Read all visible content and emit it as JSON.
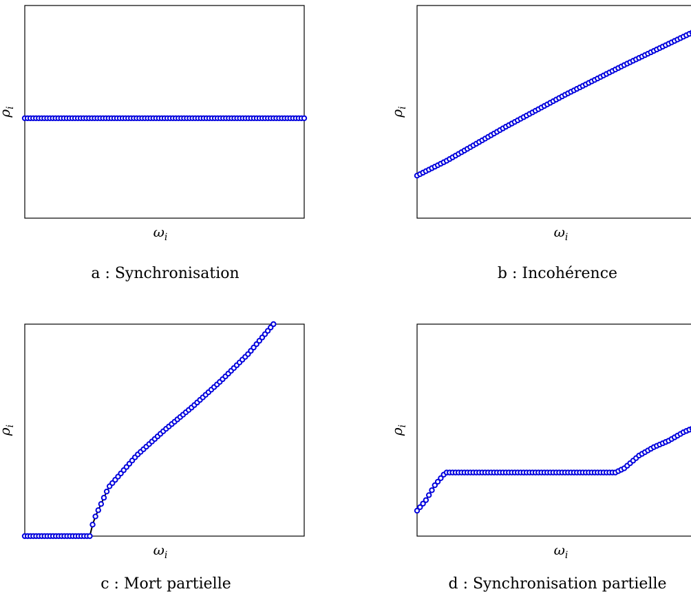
{
  "chart_data": [
    {
      "type": "scatter",
      "caption": "a : Synchronisation",
      "xlabel": "ω",
      "xlabel_sub": "i",
      "ylabel": "ρ",
      "ylabel_sub": "i",
      "xlim": [
        0,
        1
      ],
      "ylim": [
        0,
        1
      ],
      "ticks": false,
      "marker": "open-circle",
      "marker_color": "#0000dd",
      "line_color": "#000000",
      "x_start": 0.0,
      "x_end": 1.0,
      "points": 101,
      "curve": [
        [
          0.0,
          0.47
        ],
        [
          1.0,
          0.47
        ]
      ]
    },
    {
      "type": "scatter",
      "caption": "b : Incohérence",
      "xlabel": "ω",
      "xlabel_sub": "i",
      "ylabel": "ρ",
      "ylabel_sub": "i",
      "xlim": [
        0,
        1
      ],
      "ylim": [
        0,
        1
      ],
      "ticks": false,
      "marker": "open-circle",
      "marker_color": "#0000dd",
      "line_color": "#000000",
      "x_start": 0.0,
      "x_end": 1.0,
      "points": 101,
      "curve": [
        [
          0.0,
          0.2
        ],
        [
          0.1,
          0.27
        ],
        [
          0.3,
          0.43
        ],
        [
          0.5,
          0.58
        ],
        [
          0.7,
          0.72
        ],
        [
          1.0,
          0.92
        ]
      ]
    },
    {
      "type": "scatter",
      "caption": "c : Mort partielle",
      "xlabel": "ω",
      "xlabel_sub": "i",
      "ylabel": "ρ",
      "ylabel_sub": "i",
      "xlim": [
        0,
        1
      ],
      "ylim": [
        0,
        1
      ],
      "ticks": false,
      "marker": "open-circle",
      "marker_color": "#0000dd",
      "line_color": "#000000",
      "x_start": 0.0,
      "x_end": 0.89,
      "points": 89,
      "curve": [
        [
          0.0,
          0.0
        ],
        [
          0.235,
          0.0
        ],
        [
          0.245,
          0.07
        ],
        [
          0.3,
          0.23
        ],
        [
          0.4,
          0.38
        ],
        [
          0.5,
          0.5
        ],
        [
          0.6,
          0.61
        ],
        [
          0.7,
          0.73
        ],
        [
          0.8,
          0.86
        ],
        [
          0.89,
          1.0
        ]
      ]
    },
    {
      "type": "scatter",
      "caption": "d : Synchronisation partielle",
      "xlabel": "ω",
      "xlabel_sub": "i",
      "ylabel": "ρ",
      "ylabel_sub": "i",
      "xlim": [
        0,
        1
      ],
      "ylim": [
        0,
        1
      ],
      "ticks": false,
      "marker": "open-circle",
      "marker_color": "#0000dd",
      "line_color": "#000000",
      "x_start": 0.0,
      "x_end": 1.0,
      "points": 101,
      "curve": [
        [
          0.0,
          0.12
        ],
        [
          0.03,
          0.17
        ],
        [
          0.06,
          0.24
        ],
        [
          0.09,
          0.29
        ],
        [
          0.1,
          0.3
        ],
        [
          0.67,
          0.3
        ],
        [
          0.7,
          0.32
        ],
        [
          0.75,
          0.38
        ],
        [
          0.8,
          0.42
        ],
        [
          0.85,
          0.45
        ],
        [
          0.9,
          0.49
        ],
        [
          0.95,
          0.52
        ],
        [
          1.0,
          0.54
        ]
      ]
    }
  ]
}
